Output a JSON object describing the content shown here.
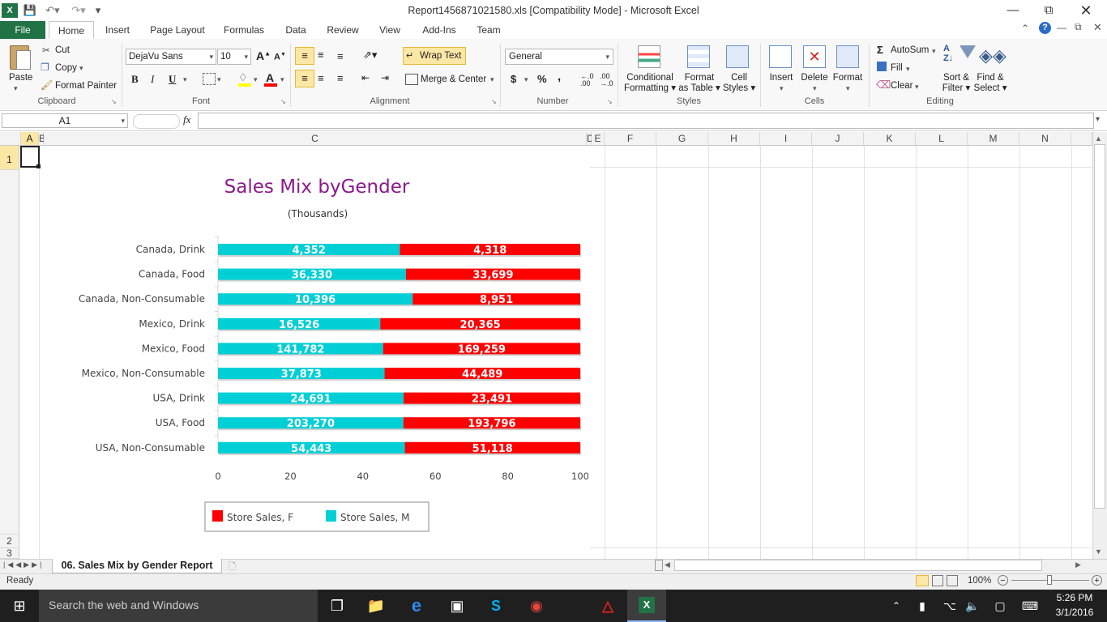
{
  "window": {
    "title": "Report1456871021580.xls  [Compatibility Mode]  -  Microsoft Excel",
    "qa_icons": [
      "excel-logo-icon",
      "save-icon",
      "undo-icon",
      "redo-icon",
      "customize-icon"
    ],
    "controls": [
      "minimize-icon",
      "restore-icon",
      "close-icon"
    ]
  },
  "tabs": {
    "file": "File",
    "items": [
      "Home",
      "Insert",
      "Page Layout",
      "Formulas",
      "Data",
      "Review",
      "View",
      "Add-Ins",
      "Team"
    ],
    "active": "Home"
  },
  "ribbon": {
    "clipboard": {
      "paste": "Paste",
      "cut": "Cut",
      "copy": "Copy",
      "format_painter": "Format Painter",
      "label": "Clipboard"
    },
    "font": {
      "family": "DejaVu Sans",
      "size": "10",
      "label": "Font",
      "bold": "B",
      "italic": "I",
      "underline": "U"
    },
    "alignment": {
      "wrap": "Wrap Text",
      "merge": "Merge & Center",
      "label": "Alignment"
    },
    "number": {
      "format": "General",
      "currency": "$",
      "percent": "%",
      "comma": ",",
      "label": "Number"
    },
    "styles": {
      "conditional": "Conditional",
      "conditional2": "Formatting",
      "format_table": "Format",
      "format_table2": "as Table",
      "cell_styles": "Cell",
      "cell_styles2": "Styles",
      "label": "Styles"
    },
    "cells": {
      "insert": "Insert",
      "delete": "Delete",
      "format": "Format",
      "label": "Cells"
    },
    "editing": {
      "autosum": "AutoSum",
      "fill": "Fill",
      "clear": "Clear",
      "sort": "Sort &",
      "sort2": "Filter",
      "find": "Find &",
      "find2": "Select",
      "label": "Editing"
    }
  },
  "formula_bar": {
    "name_box": "A1",
    "fx": "fx",
    "value": ""
  },
  "columns": [
    "A",
    "B",
    "C",
    "D",
    "E",
    "F",
    "G",
    "H",
    "I",
    "J",
    "K",
    "L",
    "M",
    "N"
  ],
  "rows": [
    "1",
    "2",
    "3"
  ],
  "sheet_tab": "06. Sales Mix by Gender Report",
  "status": {
    "ready": "Ready",
    "zoom": "100%"
  },
  "taskbar": {
    "search": "Search the web and Windows",
    "time": "5:26 PM",
    "date": "3/1/2016"
  },
  "chart_data": {
    "type": "bar",
    "stacked": "100%",
    "orientation": "horizontal",
    "title": "Sales Mix byGender",
    "subtitle": "(Thousands)",
    "categories": [
      "Canada, Drink",
      "Canada, Food",
      "Canada, Non-Consumable",
      "Mexico, Drink",
      "Mexico, Food",
      "Mexico, Non-Consumable",
      "USA, Drink",
      "USA, Food",
      "USA, Non-Consumable"
    ],
    "series": [
      {
        "name": "Store Sales, M",
        "color": "#00cfd6",
        "values": [
          4352,
          36330,
          10396,
          16526,
          141782,
          37873,
          24691,
          203270,
          54443
        ],
        "labels": [
          "4,352",
          "36,330",
          "10,396",
          "16,526",
          "141,782",
          "37,873",
          "24,691",
          "203,270",
          "54,443"
        ]
      },
      {
        "name": "Store Sales, F",
        "color": "#ff0000",
        "values": [
          4318,
          33699,
          8951,
          20365,
          169259,
          44489,
          23491,
          193796,
          51118
        ],
        "labels": [
          "4,318",
          "33,699",
          "8,951",
          "20,365",
          "169,259",
          "44,489",
          "23,491",
          "193,796",
          "51,118"
        ]
      }
    ],
    "xlim": [
      0,
      100
    ],
    "ticks": [
      "0",
      "20",
      "40",
      "60",
      "80",
      "100"
    ],
    "legend": "bottom",
    "legend_order": [
      "Store Sales, F",
      "Store Sales, M"
    ]
  }
}
